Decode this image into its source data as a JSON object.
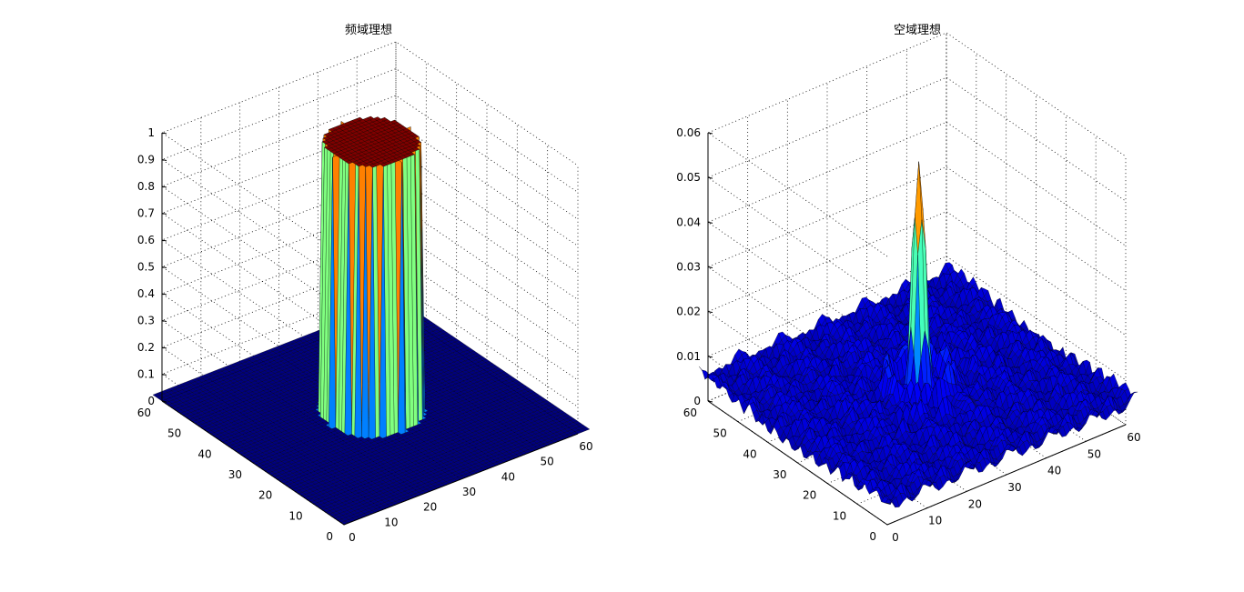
{
  "figure": {
    "background": "#ffffff",
    "colormap": "jet"
  },
  "chart_data": [
    {
      "type": "surface",
      "title": "频域理想",
      "xlabel": "",
      "ylabel": "",
      "zlabel": "",
      "xlim": [
        0,
        60
      ],
      "ylim": [
        0,
        60
      ],
      "zlim": [
        0,
        1
      ],
      "x_ticks": [
        "0",
        "10",
        "20",
        "30",
        "40",
        "50",
        "60"
      ],
      "y_ticks": [
        "0",
        "10",
        "20",
        "30",
        "40",
        "50",
        "60"
      ],
      "z_ticks": [
        "0",
        "0.1",
        "0.2",
        "0.3",
        "0.4",
        "0.5",
        "0.6",
        "0.7",
        "0.8",
        "0.9",
        "1"
      ],
      "grid": true,
      "surface": {
        "kind": "ideal_lowpass",
        "grid_size": 64,
        "center": [
          32,
          32
        ],
        "cutoff_radius": 10,
        "value_inside": 1,
        "value_outside": 0
      },
      "colors": {
        "low": "#00008f",
        "high": "#800000"
      }
    },
    {
      "type": "surface",
      "title": "空域理想",
      "xlabel": "",
      "ylabel": "",
      "zlabel": "",
      "xlim": [
        0,
        60
      ],
      "ylim": [
        0,
        60
      ],
      "zlim": [
        0,
        0.06
      ],
      "x_ticks": [
        "0",
        "10",
        "20",
        "30",
        "40",
        "50",
        "60"
      ],
      "y_ticks": [
        "0",
        "10",
        "20",
        "30",
        "40",
        "50",
        "60"
      ],
      "z_ticks": [
        "0",
        "0.01",
        "0.02",
        "0.03",
        "0.04",
        "0.05",
        "0.06"
      ],
      "grid": true,
      "surface": {
        "kind": "ideal_lowpass_spatial_response",
        "grid_size": 64,
        "center": [
          32,
          32
        ],
        "peak_value": 0.052,
        "floor_value": 0.002,
        "ripple_amplitude": 0.0045
      },
      "colors": {
        "low": "#00008f",
        "high": "#800000"
      }
    }
  ]
}
